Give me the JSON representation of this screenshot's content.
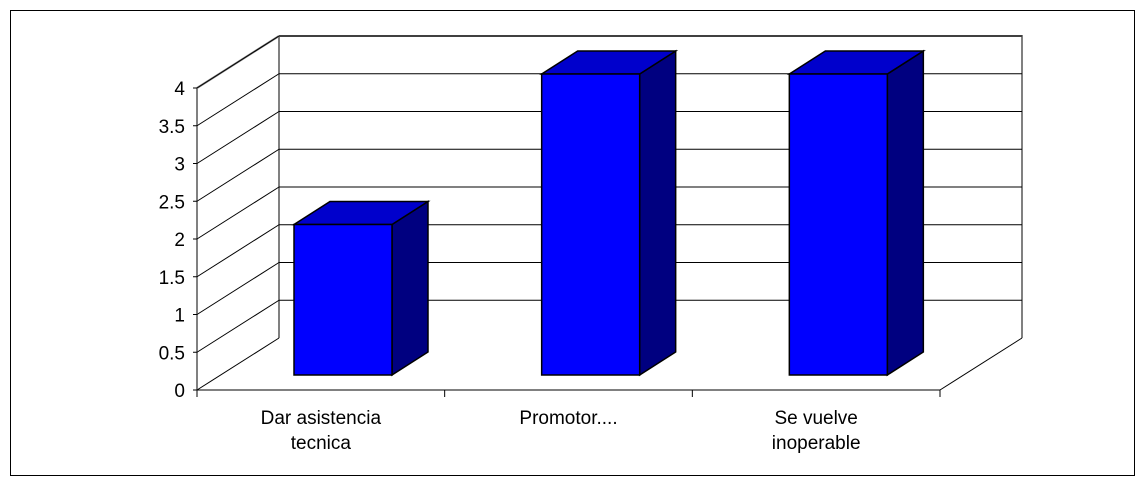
{
  "chart_data": {
    "type": "bar",
    "style": "3d-column",
    "categories": [
      [
        "Dar asistencia",
        "tecnica"
      ],
      [
        "Promotor...."
      ],
      [
        "Se vuelve",
        "inoperable"
      ]
    ],
    "values": [
      2,
      4,
      4
    ],
    "yticks": [
      "0",
      "0.5",
      "1",
      "1.5",
      "2",
      "2.5",
      "3",
      "3.5",
      "4"
    ],
    "ylim": [
      0,
      4
    ],
    "grid": true,
    "legend": false,
    "colors": {
      "bar_front": "#0000FF",
      "bar_top": "#0000CC",
      "bar_side": "#000080",
      "grid": "#000000",
      "wall_edge": "#808080"
    }
  }
}
